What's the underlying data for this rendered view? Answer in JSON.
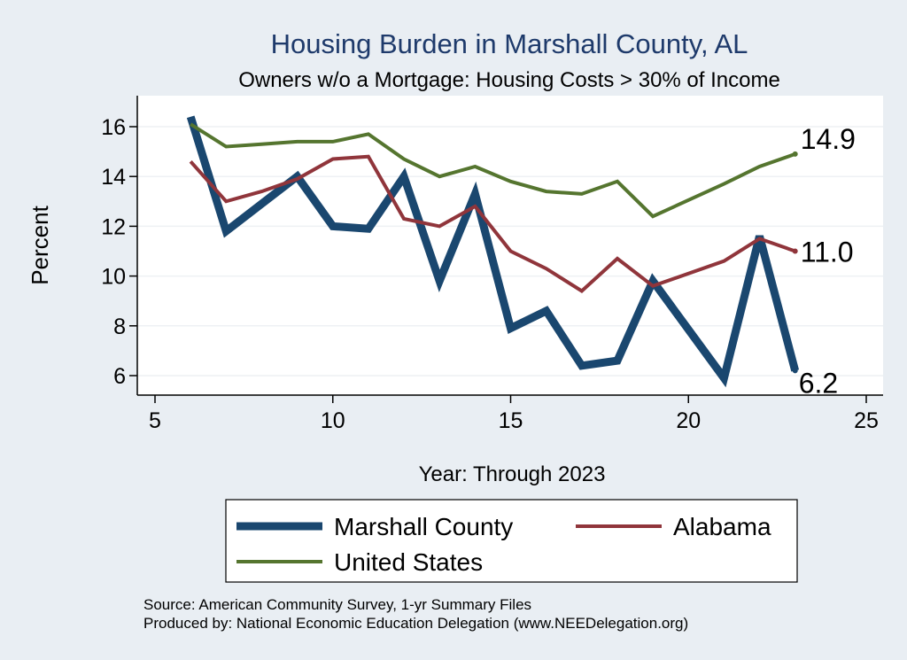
{
  "chart_data": {
    "type": "line",
    "title": "Housing Burden in Marshall County, AL",
    "subtitle": "Owners w/o a Mortgage: Housing Costs > 30% of Income",
    "xlabel": "Year: Through 2023",
    "ylabel": "Percent",
    "xlim": [
      5,
      25
    ],
    "ylim": [
      5.3,
      17
    ],
    "x_ticks": [
      5,
      10,
      15,
      20,
      25
    ],
    "y_ticks": [
      6,
      8,
      10,
      12,
      14,
      16
    ],
    "grid": true,
    "legend_position": "bottom",
    "series": [
      {
        "name": "Marshall County",
        "color": "#1a476f",
        "x": [
          6,
          7,
          8,
          9,
          10,
          11,
          12,
          13,
          14,
          15,
          16,
          17,
          18,
          19,
          21,
          22,
          23
        ],
        "y": [
          16.4,
          11.8,
          12.9,
          14.0,
          12.0,
          11.9,
          14.0,
          9.8,
          13.3,
          7.9,
          8.6,
          6.4,
          6.6,
          9.8,
          5.9,
          11.6,
          6.2
        ],
        "end_label": "6.2"
      },
      {
        "name": "Alabama",
        "color": "#90353b",
        "x": [
          6,
          7,
          8,
          9,
          10,
          11,
          12,
          13,
          14,
          15,
          16,
          17,
          18,
          19,
          21,
          22,
          23
        ],
        "y": [
          14.6,
          13.0,
          13.4,
          13.9,
          14.7,
          14.8,
          12.3,
          12.0,
          12.8,
          11.0,
          10.3,
          9.4,
          10.7,
          9.6,
          10.6,
          11.5,
          11.0
        ],
        "end_label": "11.0"
      },
      {
        "name": "United States",
        "color": "#55752f",
        "x": [
          6,
          7,
          8,
          9,
          10,
          11,
          12,
          13,
          14,
          15,
          16,
          17,
          18,
          19,
          21,
          22,
          23
        ],
        "y": [
          16.1,
          15.2,
          15.3,
          15.4,
          15.4,
          15.7,
          14.7,
          14.0,
          14.4,
          13.8,
          13.4,
          13.3,
          13.8,
          12.4,
          13.7,
          14.4,
          14.9
        ],
        "end_label": "14.9"
      }
    ]
  },
  "source_line": "Source: American Community Survey, 1-yr Summary Files",
  "produced_line": "Produced by: National Economic Education Delegation (www.NEEDelegation.org)"
}
